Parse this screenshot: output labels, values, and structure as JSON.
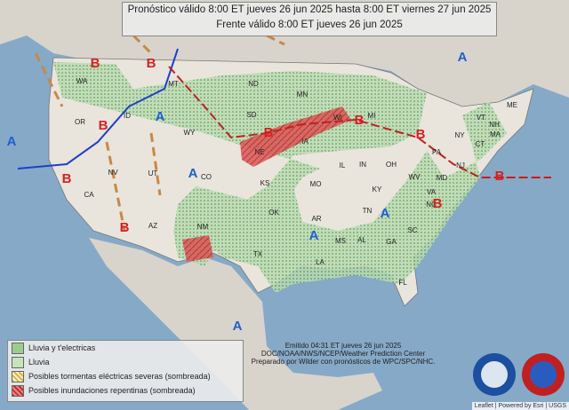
{
  "header": {
    "line1": "Pronóstico válido 8:00 ET jueves 26 jun 2025 hasta 8:00 ET viernes 27 jun 2025",
    "line2": "Frente válido 8:00 ET jueves 26 jun 2025"
  },
  "states": [
    "WA",
    "OR",
    "ID",
    "MT",
    "WY",
    "ND",
    "SD",
    "NE",
    "KS",
    "OK",
    "TX",
    "NM",
    "AZ",
    "UT",
    "NV",
    "CA",
    "CO",
    "MN",
    "IA",
    "MO",
    "AR",
    "LA",
    "MS",
    "AL",
    "GA",
    "FL",
    "SC",
    "NC",
    "TN",
    "KY",
    "VA",
    "WV",
    "OH",
    "IN",
    "IL",
    "WI",
    "MI",
    "PA",
    "NY",
    "ME",
    "VT",
    "NH",
    "MA",
    "CT",
    "NJ",
    "MD"
  ],
  "lows": [
    "B",
    "B",
    "B",
    "B",
    "B",
    "B",
    "B",
    "B",
    "B",
    "B"
  ],
  "highs": [
    "A",
    "A",
    "A",
    "A",
    "A",
    "A",
    "A"
  ],
  "legend": [
    "Lluvia y t'electricas",
    "Lluvia",
    "Posibles tormentas eléctricas severas (sombreada)",
    "Posibles inundaciones repentinas (sombreada)"
  ],
  "footer": {
    "line1": "Emitido 04:31 ET jueves 26 jun 2025",
    "line2": "DOC/NOAA/NWS/NCEP/Weather Prediction Center",
    "line3": "Preparado por Wilder con pronósticos de WPC/SPC/NHC."
  },
  "attribution": "Leaflet | Powered by Esri | USGS"
}
